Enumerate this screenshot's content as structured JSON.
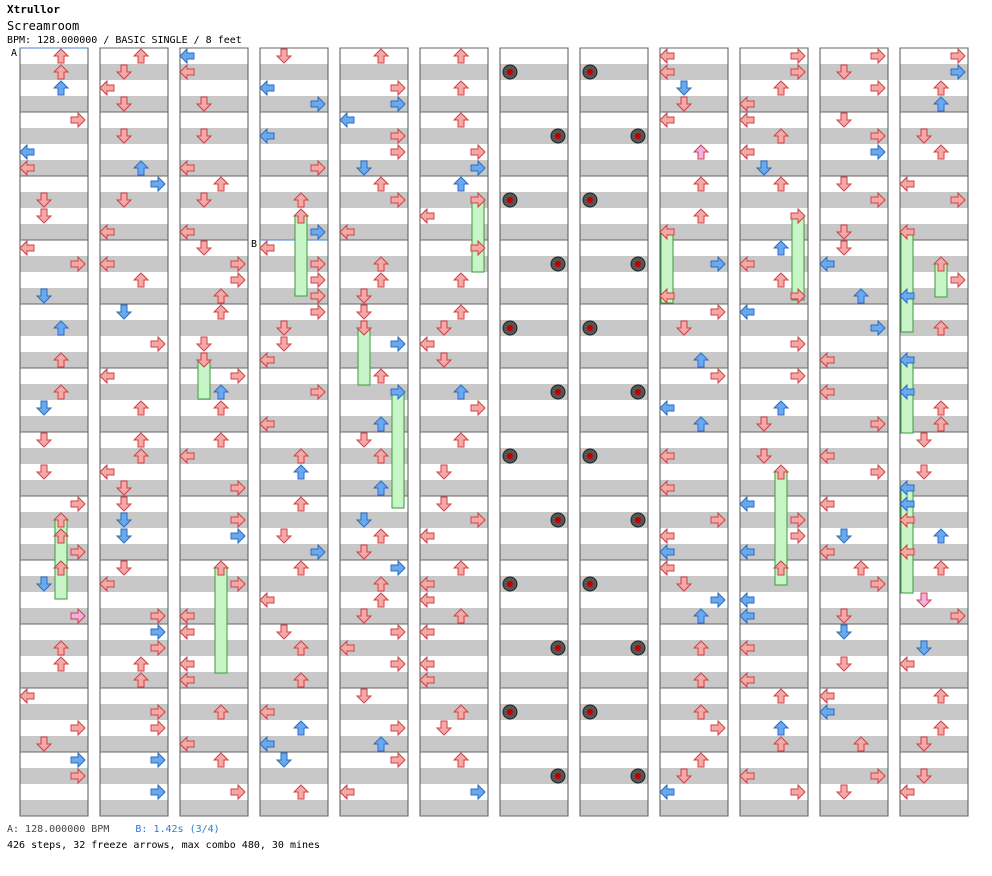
{
  "header": {
    "artist": "Xtrullor",
    "title": "Screamroom",
    "meta": "BPM: 128.000000 / BASIC SINGLE / 8 feet"
  },
  "markers": {
    "a": "A",
    "b": "B"
  },
  "footer": {
    "bpm_a": "A: 128.000000 BPM",
    "bpm_b": "B: 1.42s (3/4)",
    "stats": "426 steps, 32 freeze arrows, max combo 480, 30 mines"
  },
  "colors": {
    "left": "#f2a6a6",
    "down": "#f2a6a6",
    "up": "#f2a6a6",
    "right": "#f2a6a6",
    "quarter": "#f4a9a9",
    "eighth": "#6aa9ee",
    "sixteenth": "#f0b0e6",
    "freeze": "#c8f5c8",
    "mine": "#444444",
    "stripe": "#c8c8c8"
  }
}
